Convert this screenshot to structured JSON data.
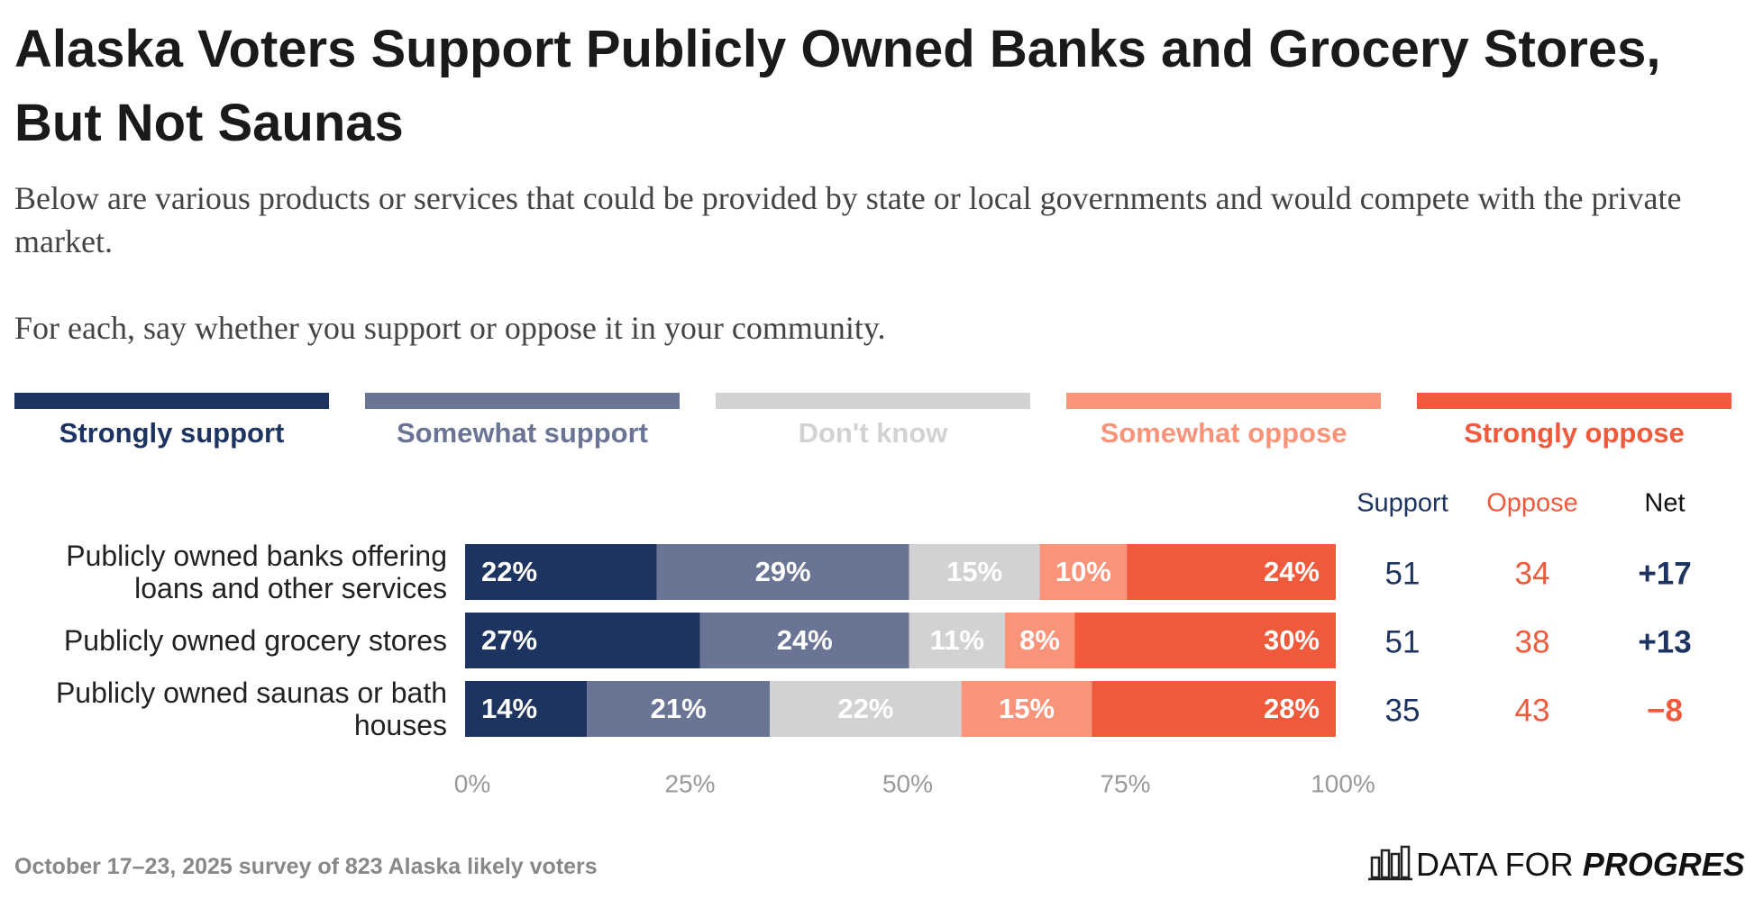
{
  "chart_data": {
    "type": "stacked_hbar",
    "title": "Alaska Voters Support Publicly Owned Banks and Grocery Stores, But Not Saunas",
    "subtitle": "Below are various products or services that could be provided by state or local governments and would compete with the private market.",
    "question": "For each, say whether you support or oppose it in your community.",
    "categories": [
      "Publicly owned banks offering loans and other services",
      "Publicly owned grocery stores",
      "Publicly owned saunas or bath houses"
    ],
    "series": [
      {
        "name": "Strongly support",
        "color": "#1d3461",
        "values": [
          22,
          27,
          14
        ],
        "value_labels": [
          "22%",
          "27%",
          "14%"
        ]
      },
      {
        "name": "Somewhat support",
        "color": "#6a7596",
        "values": [
          29,
          24,
          21
        ],
        "value_labels": [
          "29%",
          "24%",
          "21%"
        ]
      },
      {
        "name": "Don't know",
        "color": "#d2d2d4",
        "values": [
          15,
          11,
          22
        ],
        "value_labels": [
          "15%",
          "11%",
          "22%"
        ]
      },
      {
        "name": "Somewhat oppose",
        "color": "#f99379",
        "values": [
          10,
          8,
          15
        ],
        "value_labels": [
          "10%",
          "8%",
          "15%"
        ]
      },
      {
        "name": "Strongly oppose",
        "color": "#f05a3c",
        "values": [
          24,
          30,
          28
        ],
        "value_labels": [
          "24%",
          "30%",
          "28%"
        ]
      }
    ],
    "xlim": [
      0,
      100
    ],
    "xticks": [
      {
        "value": 0,
        "label": "0%"
      },
      {
        "value": 25,
        "label": "25%"
      },
      {
        "value": 50,
        "label": "50%"
      },
      {
        "value": 75,
        "label": "75%"
      },
      {
        "value": 100,
        "label": "100%"
      }
    ],
    "columns": [
      {
        "name": "Support",
        "color": "#1d3461",
        "values": [
          51,
          51,
          35
        ]
      },
      {
        "name": "Oppose",
        "color": "#f05a3c",
        "values": [
          34,
          38,
          43
        ]
      },
      {
        "name": "Net",
        "color": "#111111",
        "positive_color": "#1d3461",
        "negative_color": "#f05a3c",
        "values": [
          17,
          13,
          -8
        ],
        "value_labels": [
          "+17",
          "+13",
          "−8"
        ]
      }
    ],
    "footnote": "October 17–23, 2025 survey of 823 Alaska likely voters",
    "logo": {
      "text": "DATA FOR",
      "emphasis": "PROGRESS"
    }
  }
}
